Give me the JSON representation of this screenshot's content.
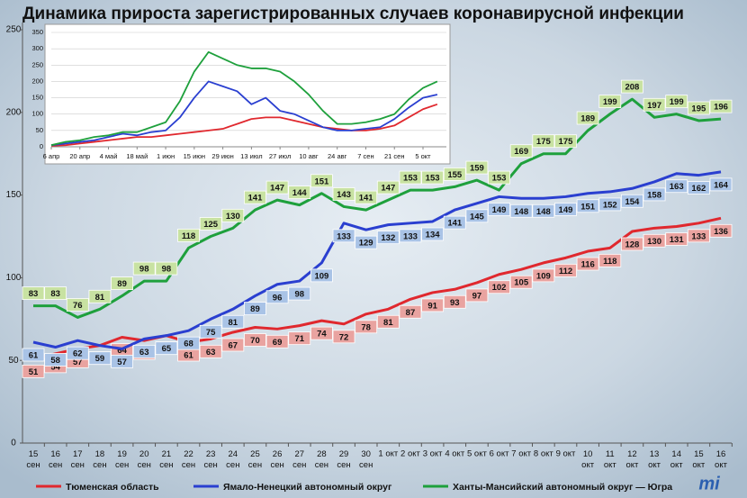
{
  "chart_data": [
    {
      "type": "line",
      "title": "Динамика прироста зарегистрированных случаев коронавирусной инфекции",
      "categories": [
        "15\nсен",
        "16\nсен",
        "17\nсен",
        "18\nсен",
        "19\nсен",
        "20\nсен",
        "21\nсен",
        "22\nсен",
        "23\nсен",
        "24\nсен",
        "25\nсен",
        "26\nсен",
        "27\nсен",
        "28\nсен",
        "29\nсен",
        "30\nсен",
        "1 окт",
        "2 окт",
        "3 окт",
        "4 окт",
        "5 окт",
        "6 окт",
        "7 окт",
        "8 окт",
        "9 окт",
        "10\nокт",
        "11\nокт",
        "12\nокт",
        "13\nокт",
        "14\nокт",
        "15\nокт",
        "16\nокт"
      ],
      "series": [
        {
          "name": "Тюменская область",
          "color": "#e0282e",
          "label_bg": "#e9a3a0",
          "values": [
            51,
            54,
            57,
            59,
            64,
            62,
            65,
            61,
            63,
            67,
            70,
            69,
            71,
            74,
            72,
            78,
            81,
            87,
            91,
            93,
            97,
            102,
            105,
            109,
            112,
            116,
            118,
            128,
            130,
            131,
            133,
            136
          ]
        },
        {
          "name": "Ямало-Ненецкий автономный округ",
          "color": "#2a3fd0",
          "label_bg": "#a9c3e6",
          "values": [
            61,
            58,
            62,
            59,
            57,
            63,
            65,
            68,
            75,
            81,
            89,
            96,
            98,
            109,
            133,
            129,
            132,
            133,
            134,
            141,
            145,
            149,
            148,
            148,
            149,
            151,
            152,
            154,
            158,
            163,
            162,
            164
          ]
        },
        {
          "name": "Ханты-Мансийский автономный округ — Югра",
          "color": "#1ea03c",
          "label_bg": "#c8e2a2",
          "values": [
            83,
            83,
            76,
            81,
            89,
            98,
            98,
            118,
            125,
            130,
            141,
            147,
            144,
            151,
            143,
            141,
            147,
            153,
            153,
            155,
            159,
            153,
            169,
            175,
            175,
            189,
            199,
            208,
            197,
            199,
            195,
            196
          ]
        }
      ],
      "ylim": [
        0,
        250
      ],
      "yticks": [
        0,
        50,
        100,
        150,
        200,
        250
      ],
      "grid": false,
      "legend": "bottom",
      "logo": "mi"
    },
    {
      "type": "line",
      "categories": [
        "6 апр",
        null,
        "20 апр",
        null,
        "4 май",
        null,
        "18 май",
        null,
        "1 июн",
        null,
        "15 июн",
        null,
        "29 июн",
        null,
        "13 июл",
        null,
        "27 июл",
        null,
        "10 авг",
        null,
        "24 авг",
        null,
        "7 сен",
        null,
        "21 сен",
        null,
        "5 окт",
        null
      ],
      "series": [
        {
          "color": "#e0282e",
          "values": [
            3,
            5,
            10,
            15,
            20,
            25,
            30,
            30,
            35,
            40,
            45,
            50,
            55,
            70,
            85,
            90,
            90,
            80,
            70,
            60,
            55,
            50,
            50,
            55,
            65,
            90,
            115,
            130
          ]
        },
        {
          "color": "#2a3fd0",
          "values": [
            5,
            10,
            15,
            20,
            30,
            40,
            35,
            45,
            50,
            90,
            150,
            200,
            185,
            170,
            130,
            150,
            110,
            100,
            80,
            60,
            50,
            50,
            55,
            60,
            85,
            120,
            150,
            160
          ]
        },
        {
          "color": "#1ea03c",
          "values": [
            5,
            15,
            20,
            30,
            35,
            45,
            45,
            60,
            75,
            140,
            230,
            290,
            270,
            250,
            240,
            240,
            230,
            200,
            160,
            110,
            70,
            70,
            75,
            85,
            100,
            145,
            180,
            200
          ]
        }
      ],
      "ylim": [
        0,
        350
      ],
      "yticks": [
        0,
        50,
        100,
        150,
        200,
        250,
        300,
        350
      ],
      "grid": true
    }
  ]
}
